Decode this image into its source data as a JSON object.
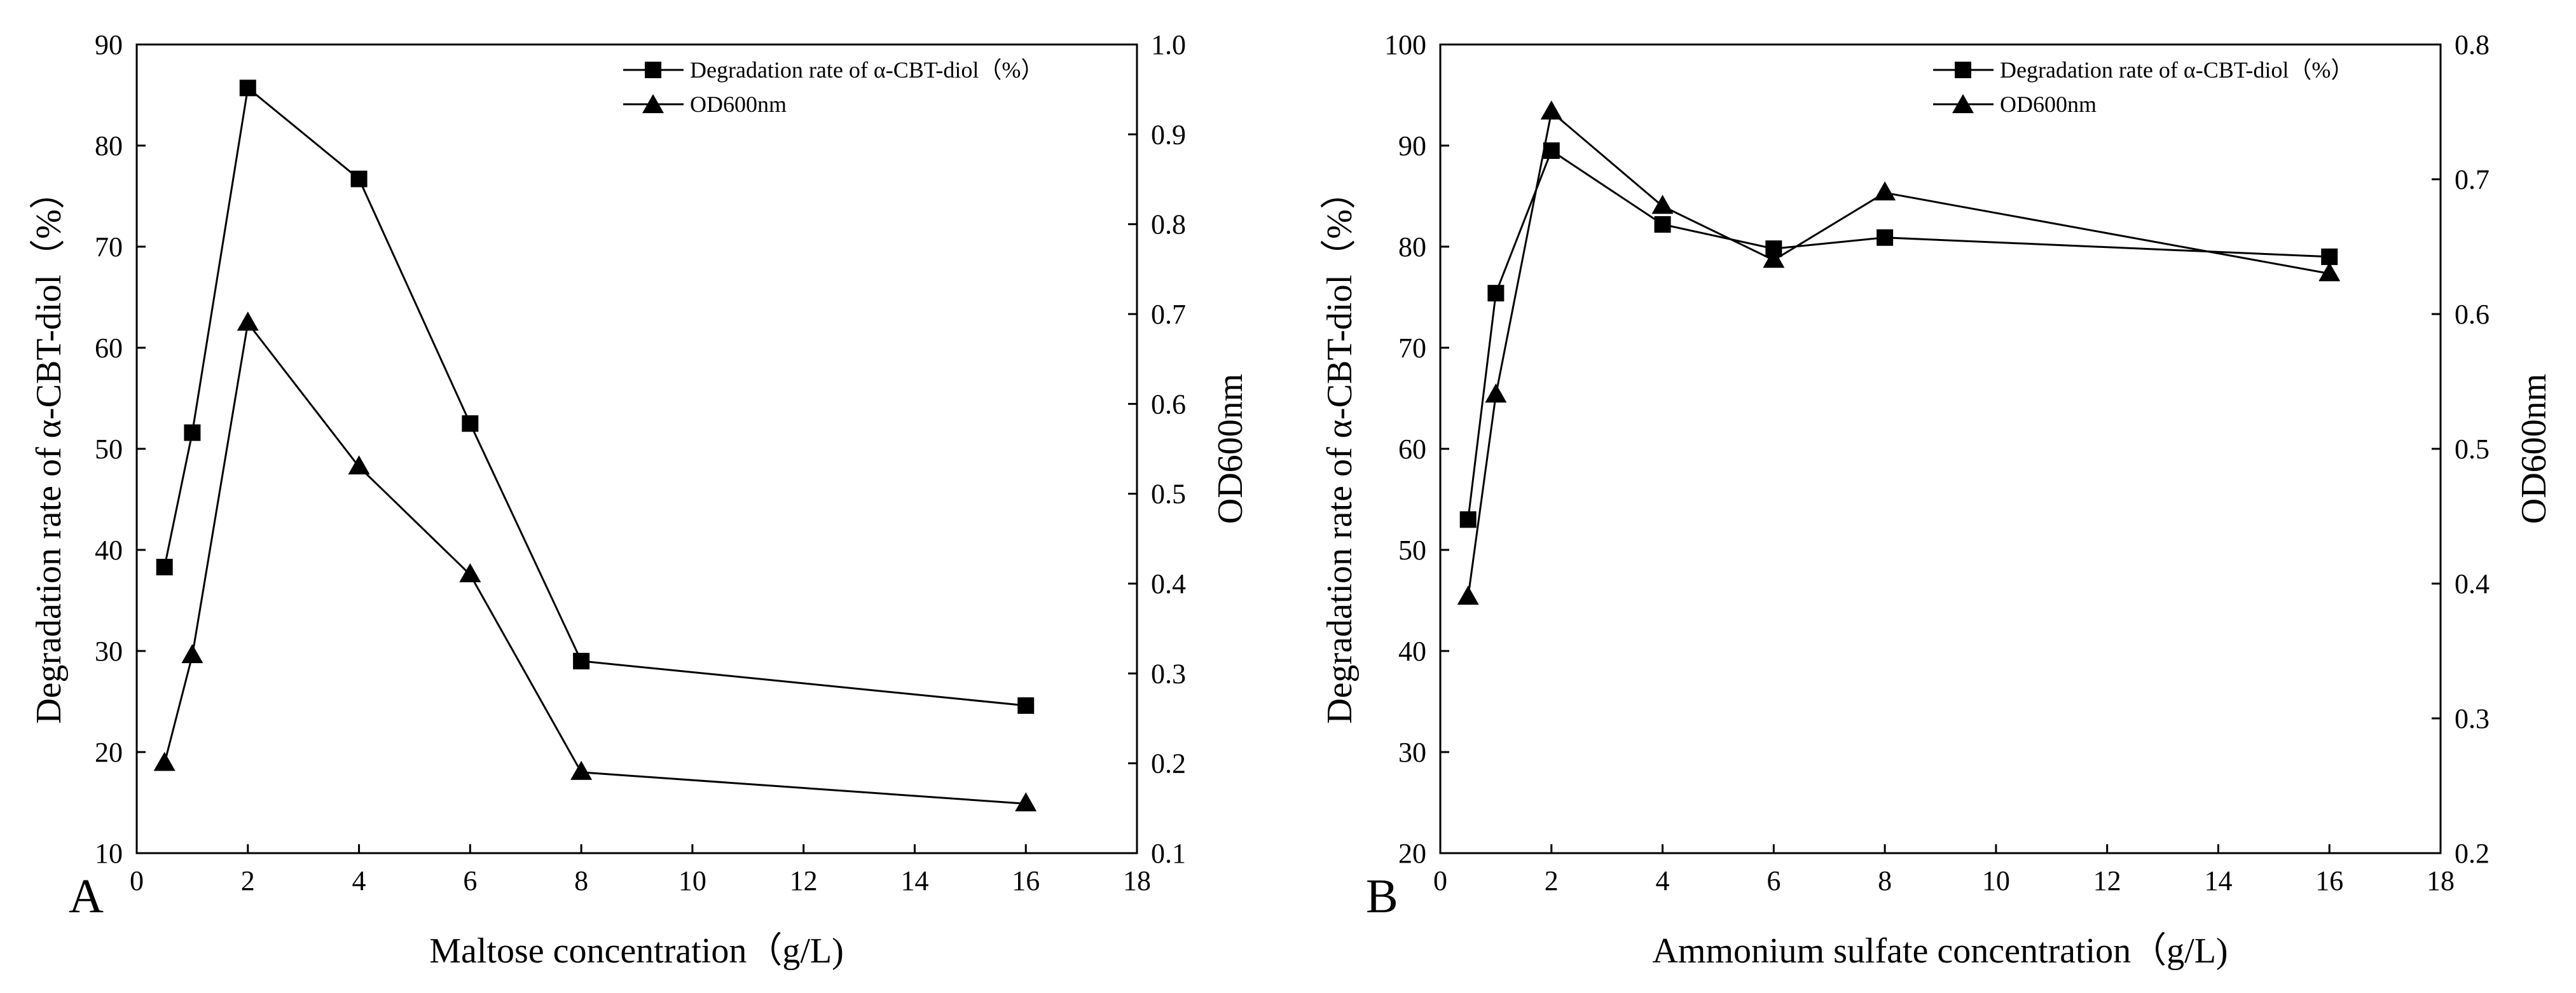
{
  "chart_data": [
    {
      "type": "line",
      "panel_label": "A",
      "xlabel": "Maltose concentration（g/L)",
      "ylabel": "Degradation rate of α-CBT-diol（%）",
      "y2label": "OD600nm",
      "xlim": [
        0,
        18
      ],
      "ylim": [
        10,
        90
      ],
      "y2lim": [
        0.1,
        1.0
      ],
      "x_ticks": [
        0,
        2,
        4,
        6,
        8,
        10,
        12,
        14,
        16,
        18
      ],
      "y_ticks": [
        10,
        20,
        30,
        40,
        50,
        60,
        70,
        80,
        90
      ],
      "y2_ticks": [
        "0.1",
        "0.2",
        "0.3",
        "0.4",
        "0.5",
        "0.6",
        "0.7",
        "0.8",
        "0.9",
        "1.0"
      ],
      "legend_position": "top-right",
      "series": [
        {
          "name": "Degradation rate of α-CBT-diol（%）",
          "marker": "square",
          "axis": "left",
          "x": [
            0.5,
            1,
            2,
            4,
            6,
            8,
            16
          ],
          "values": [
            38.3,
            51.6,
            85.7,
            76.7,
            52.5,
            29.0,
            24.6
          ]
        },
        {
          "name": "OD600nm",
          "marker": "triangle",
          "axis": "right",
          "x": [
            0.5,
            1,
            2,
            4,
            6,
            8,
            16
          ],
          "values": [
            0.2,
            0.32,
            0.69,
            0.53,
            0.41,
            0.19,
            0.155
          ]
        }
      ]
    },
    {
      "type": "line",
      "panel_label": "B",
      "xlabel": "Ammonium sulfate concentration（g/L)",
      "ylabel": "Degradation rate of α-CBT-diol（%）",
      "y2label": "OD600nm",
      "xlim": [
        0,
        18
      ],
      "ylim": [
        20,
        100
      ],
      "y2lim": [
        0.2,
        0.8
      ],
      "x_ticks": [
        0,
        2,
        4,
        6,
        8,
        10,
        12,
        14,
        16,
        18
      ],
      "y_ticks": [
        20,
        30,
        40,
        50,
        60,
        70,
        80,
        90,
        100
      ],
      "y2_ticks": [
        "0.2",
        "0.3",
        "0.4",
        "0.5",
        "0.6",
        "0.7",
        "0.8"
      ],
      "legend_position": "top-right",
      "series": [
        {
          "name": "Degradation rate of α-CBT-diol（%）",
          "marker": "square",
          "axis": "left",
          "x": [
            0.5,
            1,
            2,
            4,
            6,
            8,
            16
          ],
          "values": [
            53.0,
            75.4,
            89.5,
            82.2,
            79.8,
            80.9,
            79.0
          ]
        },
        {
          "name": "OD600nm",
          "marker": "triangle",
          "axis": "right",
          "x": [
            0.5,
            1,
            2,
            4,
            6,
            8,
            16
          ],
          "values": [
            0.39,
            0.54,
            0.75,
            0.68,
            0.64,
            0.69,
            0.63
          ]
        }
      ]
    }
  ]
}
